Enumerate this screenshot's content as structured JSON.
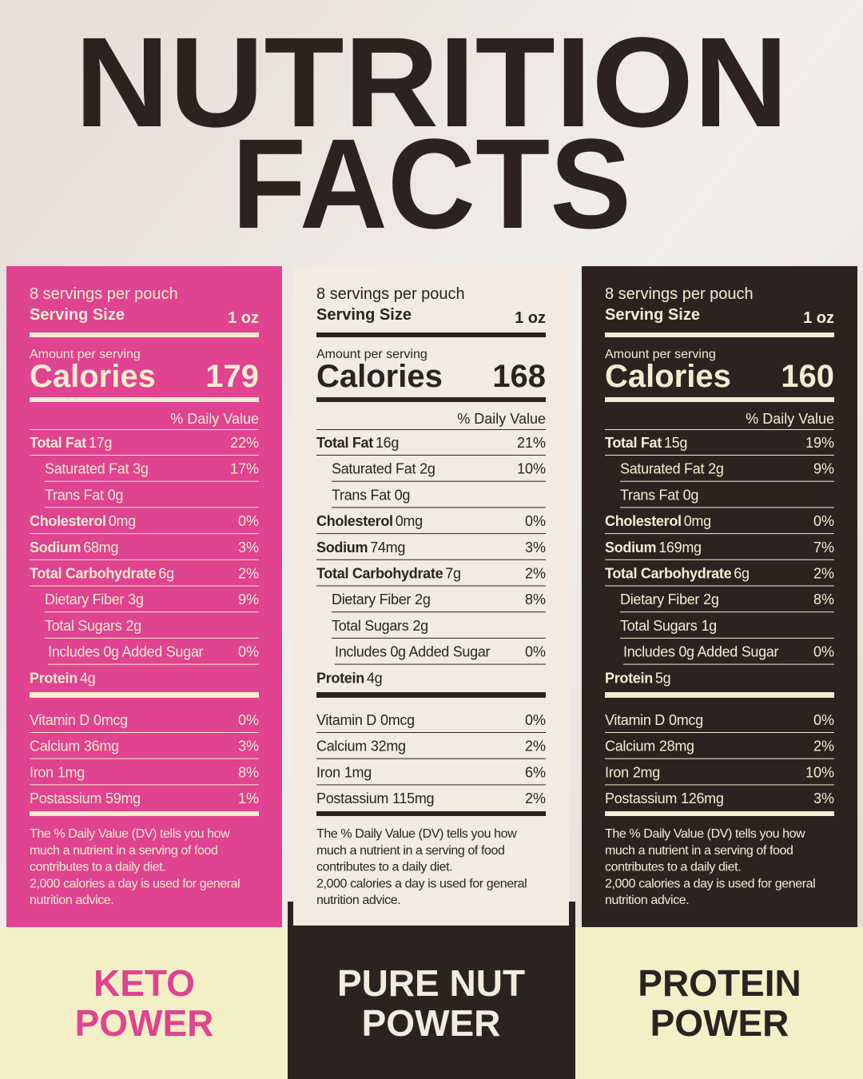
{
  "title": [
    "NUTRITION",
    "FACTS"
  ],
  "panels": [
    {
      "servings": "8 servings per pouch",
      "serving_size_label": "Serving Size",
      "serving_size": "1 oz",
      "amount_label": "Amount per serving",
      "calories_label": "Calories",
      "calories": "179",
      "dv_label": "% Daily Value",
      "nutrients": [
        {
          "label": "Total Fat",
          "amount": "17g",
          "dv": "22%"
        },
        {
          "label": "Saturated Fat",
          "amount": "3g",
          "dv": "17%"
        },
        {
          "label": "Trans Fat",
          "amount": "0g"
        },
        {
          "label": "Cholesterol",
          "amount": "0mg",
          "dv": "0%"
        },
        {
          "label": "Sodium",
          "amount": "68mg",
          "dv": "3%"
        },
        {
          "label": "Total Carbohydrate",
          "amount": "6g",
          "dv": "2%"
        },
        {
          "label": "Dietary Fiber",
          "amount": "3g",
          "dv": "9%"
        },
        {
          "label": "Total Sugars",
          "amount": "2g"
        },
        {
          "label": "Includes 0g Added Sugar",
          "dv": "0%"
        },
        {
          "label": "Protein",
          "amount": "4g"
        }
      ],
      "vitamins": [
        {
          "label": "Vitamin D",
          "amount": "0mcg",
          "dv": "0%"
        },
        {
          "label": "Calcium",
          "amount": "36mg",
          "dv": "3%"
        },
        {
          "label": "Iron",
          "amount": "1mg",
          "dv": "8%"
        },
        {
          "label": "Postassium",
          "amount": "59mg",
          "dv": "1%"
        }
      ],
      "footnote": [
        "The % Daily Value (DV) tells you how",
        "much a nutrient in a serving of food",
        "contributes to a daily diet.",
        "2,000 calories a day is used for general",
        "nutrition advice."
      ],
      "product": [
        "KETO",
        "POWER"
      ]
    },
    {
      "servings": "8 servings per pouch",
      "serving_size_label": "Serving Size",
      "serving_size": "1 oz",
      "amount_label": "Amount per serving",
      "calories_label": "Calories",
      "calories": "168",
      "dv_label": "% Daily Value",
      "nutrients": [
        {
          "label": "Total Fat",
          "amount": "16g",
          "dv": "21%"
        },
        {
          "label": "Saturated Fat",
          "amount": "2g",
          "dv": "10%"
        },
        {
          "label": "Trans Fat",
          "amount": "0g"
        },
        {
          "label": "Cholesterol",
          "amount": "0mg",
          "dv": "0%"
        },
        {
          "label": "Sodium",
          "amount": "74mg",
          "dv": "3%"
        },
        {
          "label": "Total Carbohydrate",
          "amount": "7g",
          "dv": "2%"
        },
        {
          "label": "Dietary Fiber",
          "amount": "2g",
          "dv": "8%"
        },
        {
          "label": "Total Sugars",
          "amount": "2g"
        },
        {
          "label": "Includes 0g Added Sugar",
          "dv": "0%"
        },
        {
          "label": "Protein",
          "amount": "4g"
        }
      ],
      "vitamins": [
        {
          "label": "Vitamin D",
          "amount": "0mcg",
          "dv": "0%"
        },
        {
          "label": "Calcium",
          "amount": "32mg",
          "dv": "2%"
        },
        {
          "label": "Iron",
          "amount": "1mg",
          "dv": "6%"
        },
        {
          "label": "Postassium",
          "amount": "115mg",
          "dv": "2%"
        }
      ],
      "footnote": [
        "The % Daily Value (DV) tells you how",
        "much a nutrient in a serving of food",
        "contributes to a daily diet.",
        "2,000 calories a day is used for general",
        "nutrition advice."
      ],
      "product": [
        "PURE NUT",
        "POWER"
      ]
    },
    {
      "servings": "8 servings per pouch",
      "serving_size_label": "Serving Size",
      "serving_size": "1 oz",
      "amount_label": "Amount per serving",
      "calories_label": "Calories",
      "calories": "160",
      "dv_label": "% Daily Value",
      "nutrients": [
        {
          "label": "Total Fat",
          "amount": "15g",
          "dv": "19%"
        },
        {
          "label": "Saturated Fat",
          "amount": "2g",
          "dv": "9%"
        },
        {
          "label": "Trans Fat",
          "amount": "0g"
        },
        {
          "label": "Cholesterol",
          "amount": "0mg",
          "dv": "0%"
        },
        {
          "label": "Sodium",
          "amount": "169mg",
          "dv": "7%"
        },
        {
          "label": "Total Carbohydrate",
          "amount": "6g",
          "dv": "2%"
        },
        {
          "label": "Dietary Fiber",
          "amount": "2g",
          "dv": "8%"
        },
        {
          "label": "Total Sugars",
          "amount": "1g"
        },
        {
          "label": "Includes 0g Added Sugar",
          "dv": "0%"
        },
        {
          "label": "Protein",
          "amount": "5g"
        }
      ],
      "vitamins": [
        {
          "label": "Vitamin D",
          "amount": "0mcg",
          "dv": "0%"
        },
        {
          "label": "Calcium",
          "amount": "28mg",
          "dv": "2%"
        },
        {
          "label": "Iron",
          "amount": "2mg",
          "dv": "10%"
        },
        {
          "label": "Postassium",
          "amount": "126mg",
          "dv": "3%"
        }
      ],
      "footnote": [
        "The % Daily Value (DV) tells you how",
        "much a nutrient in a serving of food",
        "contributes to a daily diet.",
        "2,000 calories a day is used for general",
        "nutrition advice."
      ],
      "product": [
        "PROTEIN",
        "POWER"
      ]
    }
  ]
}
